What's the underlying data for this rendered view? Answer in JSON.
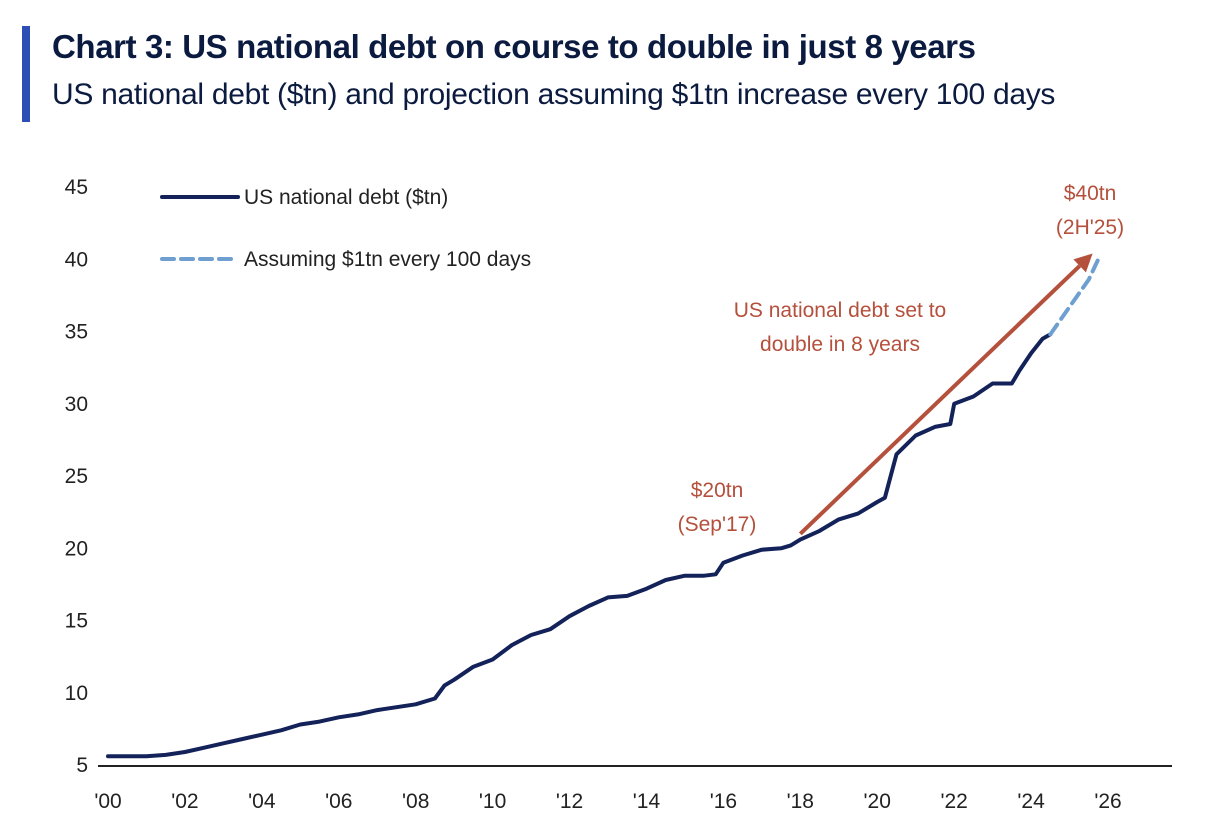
{
  "header": {
    "title": "Chart 3: US national debt on course to double in just 8 years",
    "subtitle": "US national debt ($tn) and projection assuming $1tn increase every 100 days"
  },
  "colors": {
    "accent": "#2d4fb5",
    "debt_line": "#14225a",
    "projection_line": "#6e9fd0",
    "annotation": "#b4503c",
    "axis": "#222222"
  },
  "chart_data": {
    "type": "line",
    "title": "Chart 3: US national debt on course to double in just 8 years",
    "subtitle": "US national debt ($tn) and projection assuming $1tn increase every 100 days",
    "xlabel": "",
    "ylabel": "",
    "xlim": [
      2000,
      2028
    ],
    "ylim": [
      5,
      45
    ],
    "x_ticks": [
      {
        "value": 2000,
        "label": "'00"
      },
      {
        "value": 2002,
        "label": "'02"
      },
      {
        "value": 2004,
        "label": "'04"
      },
      {
        "value": 2006,
        "label": "'06"
      },
      {
        "value": 2008,
        "label": "'08"
      },
      {
        "value": 2010,
        "label": "'10"
      },
      {
        "value": 2012,
        "label": "'12"
      },
      {
        "value": 2014,
        "label": "'14"
      },
      {
        "value": 2016,
        "label": "'16"
      },
      {
        "value": 2018,
        "label": "'18"
      },
      {
        "value": 2020,
        "label": "'20"
      },
      {
        "value": 2022,
        "label": "'22"
      },
      {
        "value": 2024,
        "label": "'24"
      },
      {
        "value": 2026,
        "label": "'26"
      }
    ],
    "y_ticks": [
      5,
      10,
      15,
      20,
      25,
      30,
      35,
      40,
      45
    ],
    "grid": false,
    "legend_position": "top-left",
    "series": [
      {
        "name": "US national debt ($tn)",
        "style": "solid",
        "x": [
          2000.0,
          2000.5,
          2001.0,
          2001.5,
          2002.0,
          2002.5,
          2003.0,
          2003.5,
          2004.0,
          2004.5,
          2005.0,
          2005.5,
          2006.0,
          2006.5,
          2007.0,
          2007.5,
          2008.0,
          2008.5,
          2008.75,
          2009.0,
          2009.5,
          2010.0,
          2010.5,
          2011.0,
          2011.5,
          2012.0,
          2012.5,
          2013.0,
          2013.5,
          2014.0,
          2014.5,
          2015.0,
          2015.5,
          2015.8,
          2016.0,
          2016.5,
          2017.0,
          2017.5,
          2017.75,
          2018.0,
          2018.5,
          2019.0,
          2019.5,
          2020.0,
          2020.2,
          2020.4,
          2020.5,
          2021.0,
          2021.5,
          2021.9,
          2022.0,
          2022.5,
          2023.0,
          2023.5,
          2023.7,
          2024.0,
          2024.3,
          2024.5
        ],
        "values": [
          5.6,
          5.6,
          5.6,
          5.7,
          5.9,
          6.2,
          6.5,
          6.8,
          7.1,
          7.4,
          7.8,
          8.0,
          8.3,
          8.5,
          8.8,
          9.0,
          9.2,
          9.6,
          10.5,
          10.9,
          11.8,
          12.3,
          13.3,
          14.0,
          14.4,
          15.3,
          16.0,
          16.6,
          16.7,
          17.2,
          17.8,
          18.1,
          18.1,
          18.2,
          19.0,
          19.5,
          19.9,
          20.0,
          20.2,
          20.6,
          21.2,
          22.0,
          22.4,
          23.2,
          23.5,
          25.5,
          26.5,
          27.8,
          28.4,
          28.6,
          30.0,
          30.5,
          31.4,
          31.4,
          32.3,
          33.5,
          34.5,
          34.8
        ]
      },
      {
        "name": "Assuming $1tn every 100 days",
        "style": "dashed",
        "x": [
          2024.5,
          2025.0,
          2025.5,
          2025.8
        ],
        "values": [
          34.8,
          36.7,
          38.6,
          40.3
        ]
      }
    ],
    "annotations": [
      {
        "text_lines": [
          "$20tn",
          "(Sep'17)"
        ],
        "x": 2017.7,
        "y": 20.0
      },
      {
        "text_lines": [
          "$40tn",
          "(2H'25)"
        ],
        "x": 2025.8,
        "y": 40.3
      },
      {
        "text_lines": [
          "US national debt set to",
          "double in 8 years"
        ],
        "arrow_from": [
          2018.0,
          21.0
        ],
        "arrow_to": [
          2025.6,
          40.4
        ]
      }
    ]
  }
}
